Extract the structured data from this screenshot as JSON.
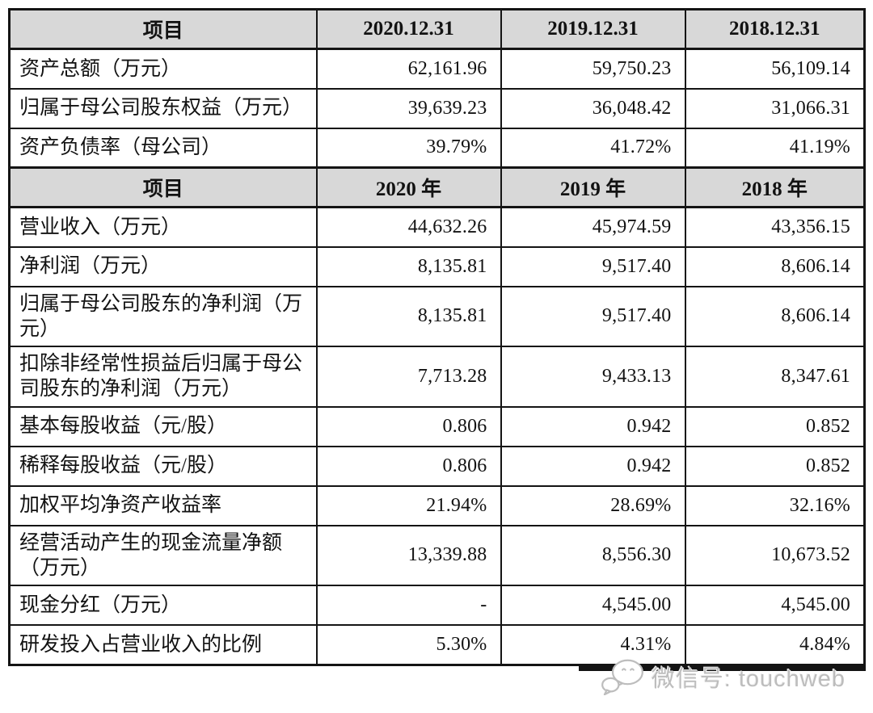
{
  "table": {
    "header1": [
      "项目",
      "2020.12.31",
      "2019.12.31",
      "2018.12.31"
    ],
    "section1": [
      {
        "label": "资产总额（万元）",
        "values": [
          "62,161.96",
          "59,750.23",
          "56,109.14"
        ]
      },
      {
        "label": "归属于母公司股东权益（万元）",
        "values": [
          "39,639.23",
          "36,048.42",
          "31,066.31"
        ]
      },
      {
        "label": "资产负债率（母公司）",
        "values": [
          "39.79%",
          "41.72%",
          "41.19%"
        ]
      }
    ],
    "header2": [
      "项目",
      "2020 年",
      "2019 年",
      "2018 年"
    ],
    "section2": [
      {
        "label": "营业收入（万元）",
        "values": [
          "44,632.26",
          "45,974.59",
          "43,356.15"
        ]
      },
      {
        "label": "净利润（万元）",
        "values": [
          "8,135.81",
          "9,517.40",
          "8,606.14"
        ]
      },
      {
        "label": "归属于母公司股东的净利润（万元）",
        "values": [
          "8,135.81",
          "9,517.40",
          "8,606.14"
        ]
      },
      {
        "label": "扣除非经常性损益后归属于母公司股东的净利润（万元）",
        "values": [
          "7,713.28",
          "9,433.13",
          "8,347.61"
        ]
      },
      {
        "label": "基本每股收益（元/股）",
        "values": [
          "0.806",
          "0.942",
          "0.852"
        ]
      },
      {
        "label": "稀释每股收益（元/股）",
        "values": [
          "0.806",
          "0.942",
          "0.852"
        ]
      },
      {
        "label": "加权平均净资产收益率",
        "values": [
          "21.94%",
          "28.69%",
          "32.16%"
        ]
      },
      {
        "label": "经营活动产生的现金流量净额（万元）",
        "values": [
          "13,339.88",
          "8,556.30",
          "10,673.52"
        ]
      },
      {
        "label": "现金分红（万元）",
        "values": [
          "-",
          "4,545.00",
          "4,545.00"
        ]
      },
      {
        "label": "研发投入占营业收入的比例",
        "values": [
          "5.30%",
          "4.31%",
          "4.84%"
        ]
      }
    ]
  },
  "watermark": {
    "icon": "wechat-icon",
    "label": "微信号: touchweb"
  },
  "colors": {
    "header_bg": "#d8d8d8",
    "border": "#141414",
    "watermark_text": "#bdbdbd"
  }
}
